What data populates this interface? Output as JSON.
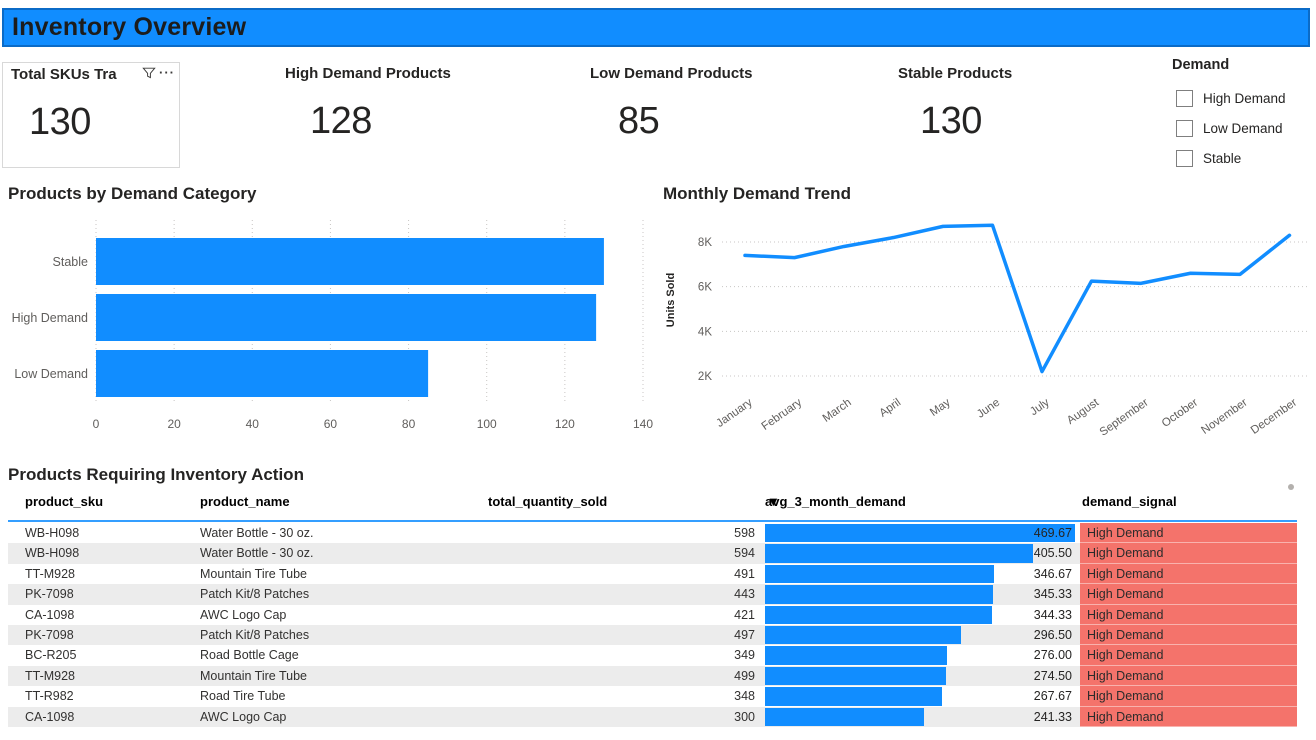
{
  "page": {
    "title": "Inventory Overview"
  },
  "colors": {
    "accent_blue": "#118DFF",
    "title_bar_border": "#0B6BC7",
    "signal_red": "#F4736B",
    "row_alt_gray": "#ECECEC",
    "axis_gray": "#605E5C",
    "text_dark": "#252423"
  },
  "kpis": [
    {
      "title": "Total SKUs Tra",
      "value": "130",
      "header_icons": [
        "filter-funnel-icon",
        "more-options-icon"
      ],
      "more_glyph": "···"
    },
    {
      "title": "High Demand Products",
      "value": "128"
    },
    {
      "title": "Low Demand Products",
      "value": "85"
    },
    {
      "title": "Stable Products",
      "value": "130"
    }
  ],
  "slicer": {
    "title": "Demand",
    "options": [
      {
        "label": "High Demand",
        "checked": false
      },
      {
        "label": "Low Demand",
        "checked": false
      },
      {
        "label": "Stable",
        "checked": false
      }
    ]
  },
  "chart_data": [
    {
      "type": "bar",
      "orientation": "horizontal",
      "title": "Products by Demand Category",
      "categories": [
        "Stable",
        "High Demand",
        "Low Demand"
      ],
      "values": [
        130,
        128,
        85
      ],
      "xlabel": "",
      "ylabel": "",
      "xlim": [
        0,
        140
      ],
      "x_ticks": [
        0,
        20,
        40,
        60,
        80,
        100,
        120,
        140
      ],
      "grid": true,
      "bar_color": "#118DFF"
    },
    {
      "type": "line",
      "title": "Monthly Demand Trend",
      "xlabel": "",
      "ylabel": "Units Sold",
      "x": [
        "January",
        "February",
        "March",
        "April",
        "May",
        "June",
        "July",
        "August",
        "September",
        "October",
        "November",
        "December"
      ],
      "values": [
        7400,
        7300,
        7800,
        8200,
        8700,
        8750,
        2200,
        6250,
        6150,
        6600,
        6550,
        8300
      ],
      "ylim": [
        2000,
        9000
      ],
      "y_ticks": [
        {
          "v": 2000,
          "label": "2K"
        },
        {
          "v": 4000,
          "label": "4K"
        },
        {
          "v": 6000,
          "label": "6K"
        },
        {
          "v": 8000,
          "label": "8K"
        }
      ],
      "grid": true,
      "line_color": "#118DFF",
      "legend": "none"
    }
  ],
  "table": {
    "title": "Products Requiring Inventory Action",
    "columns": [
      "product_sku",
      "product_name",
      "total_quantity_sold",
      "avg_3_month_demand",
      "demand_signal"
    ],
    "sort_column": "avg_3_month_demand",
    "sort_direction": "desc",
    "bar_max": 469.67,
    "rows": [
      {
        "sku": "WB-H098",
        "name": "Water Bottle - 30 oz.",
        "qty": "598",
        "avg": "469.67",
        "avg_num": 469.67,
        "signal": "High Demand"
      },
      {
        "sku": "WB-H098",
        "name": "Water Bottle - 30 oz.",
        "qty": "594",
        "avg": "405.50",
        "avg_num": 405.5,
        "signal": "High Demand"
      },
      {
        "sku": "TT-M928",
        "name": "Mountain Tire Tube",
        "qty": "491",
        "avg": "346.67",
        "avg_num": 346.67,
        "signal": "High Demand"
      },
      {
        "sku": "PK-7098",
        "name": "Patch Kit/8 Patches",
        "qty": "443",
        "avg": "345.33",
        "avg_num": 345.33,
        "signal": "High Demand"
      },
      {
        "sku": "CA-1098",
        "name": "AWC Logo Cap",
        "qty": "421",
        "avg": "344.33",
        "avg_num": 344.33,
        "signal": "High Demand"
      },
      {
        "sku": "PK-7098",
        "name": "Patch Kit/8 Patches",
        "qty": "497",
        "avg": "296.50",
        "avg_num": 296.5,
        "signal": "High Demand"
      },
      {
        "sku": "BC-R205",
        "name": "Road Bottle Cage",
        "qty": "349",
        "avg": "276.00",
        "avg_num": 276.0,
        "signal": "High Demand"
      },
      {
        "sku": "TT-M928",
        "name": "Mountain Tire Tube",
        "qty": "499",
        "avg": "274.50",
        "avg_num": 274.5,
        "signal": "High Demand"
      },
      {
        "sku": "TT-R982",
        "name": "Road Tire Tube",
        "qty": "348",
        "avg": "267.67",
        "avg_num": 267.67,
        "signal": "High Demand"
      },
      {
        "sku": "CA-1098",
        "name": "AWC Logo Cap",
        "qty": "300",
        "avg": "241.33",
        "avg_num": 241.33,
        "signal": "High Demand"
      }
    ]
  }
}
